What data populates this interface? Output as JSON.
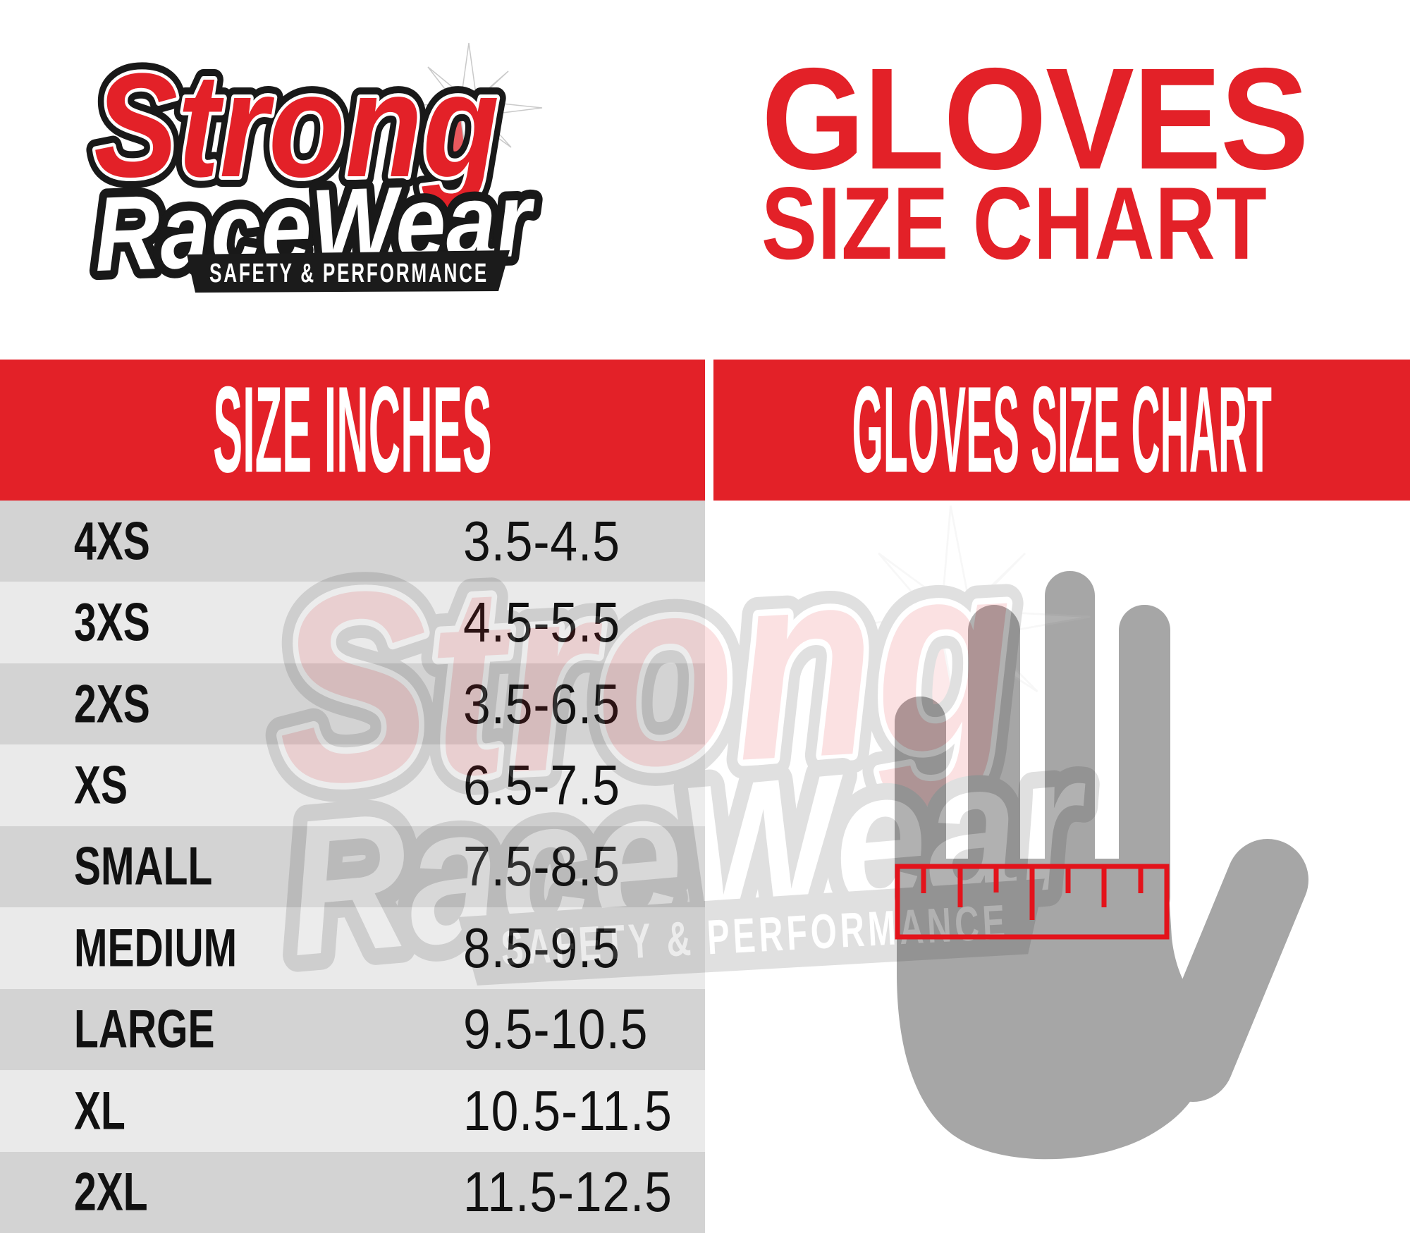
{
  "brand_logo": {
    "line1": "Strong",
    "line2": "RaceWear",
    "tagline": "SAFETY & PERFORMANCE"
  },
  "page_title": {
    "line1": "GLOVES",
    "line2": "SIZE CHART"
  },
  "left_panel": {
    "header": "SIZE INCHES"
  },
  "right_panel": {
    "header": "GLOVES SIZE CHART"
  },
  "size_table": {
    "columns": [
      "SIZE",
      "INCHES"
    ],
    "rows": [
      {
        "size": "4XS",
        "inches": "3.5-4.5"
      },
      {
        "size": "3XS",
        "inches": "4.5-5.5"
      },
      {
        "size": "2XS",
        "inches": "3.5-6.5"
      },
      {
        "size": "XS",
        "inches": "6.5-7.5"
      },
      {
        "size": "SMALL",
        "inches": "7.5-8.5"
      },
      {
        "size": "MEDIUM",
        "inches": "8.5-9.5"
      },
      {
        "size": "LARGE",
        "inches": "9.5-10.5"
      },
      {
        "size": "XL",
        "inches": "10.5-11.5"
      },
      {
        "size": "2XL",
        "inches": "11.5-12.5"
      }
    ]
  },
  "icons": [
    "hand-icon",
    "ruler-icon",
    "starburst-icon"
  ],
  "colors": {
    "accent_red": "#e32128",
    "ruler_red": "#e3131b",
    "row_dark": "#d3d3d3",
    "row_light": "#eaeaea",
    "hand_gray": "#a6a6a6",
    "tagline_bar": "#1b1b1b",
    "header_text": "#ffffff",
    "body_text": "#111111"
  }
}
